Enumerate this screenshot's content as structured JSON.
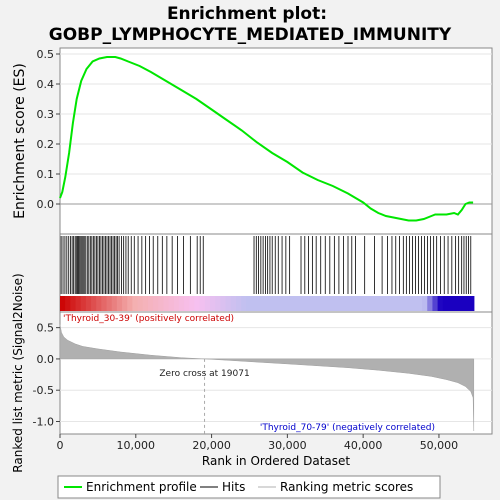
{
  "title_line1": "Enrichment plot:",
  "title_line2": "GOBP_LYMPHOCYTE_MEDIATED_IMMUNITY",
  "chart_data": [
    {
      "type": "line",
      "panel": "enrichment",
      "ylabel": "Enrichment score (ES)",
      "ylim": [
        -0.1,
        0.52
      ],
      "yticks": [
        0.0,
        0.1,
        0.2,
        0.3,
        0.4,
        0.5
      ],
      "ytick_labels": [
        "0.0",
        "0.1",
        "0.2",
        "0.3",
        "0.4",
        "0.5"
      ],
      "xlim": [
        0,
        57000
      ],
      "series": [
        {
          "name": "Enrichment profile",
          "color": "#00e600",
          "x": [
            0,
            300,
            700,
            1200,
            1700,
            2200,
            2800,
            3500,
            4300,
            5200,
            6200,
            7300,
            8000,
            9000,
            10500,
            12000,
            14000,
            16000,
            18000,
            20000,
            22000,
            24000,
            26000,
            28000,
            30000,
            32000,
            34000,
            36000,
            38000,
            39000,
            40000,
            41000,
            42000,
            43000,
            44000,
            45000,
            46000,
            47000,
            48000,
            49000,
            49500,
            50000,
            51000,
            52000,
            52500,
            53000,
            53500,
            54000,
            54500
          ],
          "y": [
            0.02,
            0.04,
            0.09,
            0.17,
            0.27,
            0.35,
            0.41,
            0.45,
            0.475,
            0.485,
            0.49,
            0.49,
            0.485,
            0.475,
            0.46,
            0.44,
            0.41,
            0.38,
            0.35,
            0.315,
            0.28,
            0.245,
            0.205,
            0.17,
            0.14,
            0.105,
            0.08,
            0.06,
            0.035,
            0.02,
            0.005,
            -0.015,
            -0.03,
            -0.04,
            -0.045,
            -0.05,
            -0.055,
            -0.055,
            -0.05,
            -0.04,
            -0.035,
            -0.035,
            -0.035,
            -0.03,
            -0.035,
            -0.02,
            0.0,
            0.005,
            0.005
          ]
        }
      ]
    },
    {
      "type": "hits",
      "panel": "hits",
      "series_name": "Hits",
      "color": "#000000",
      "hit_ranks": [
        150,
        400,
        650,
        900,
        1150,
        1400,
        1600,
        1800,
        2000,
        2150,
        2300,
        2450,
        2600,
        2750,
        2900,
        3050,
        3200,
        3400,
        3600,
        3800,
        4000,
        4200,
        4400,
        4600,
        4800,
        5000,
        5200,
        5400,
        5600,
        5800,
        6000,
        6200,
        6400,
        6600,
        6800,
        7000,
        7200,
        7400,
        7600,
        7800,
        8100,
        8400,
        8700,
        9000,
        9400,
        9800,
        10300,
        10800,
        11300,
        11800,
        12300,
        12900,
        13500,
        14100,
        14800,
        15500,
        16300,
        17200,
        18100,
        18500,
        18900,
        25600,
        25900,
        26200,
        26500,
        26800,
        27100,
        27400,
        27700,
        28000,
        28400,
        28800,
        29300,
        29800,
        30300,
        31800,
        32300,
        32800,
        33300,
        33800,
        34400,
        35000,
        35600,
        36200,
        36800,
        37400,
        38000,
        38500,
        39000,
        40200,
        41500,
        42500,
        43200,
        43800,
        44300,
        44800,
        45300,
        45700,
        46100,
        46500,
        46900,
        47300,
        47700,
        48100,
        48500,
        48900,
        49300,
        49700,
        50200,
        50700,
        51200,
        51700,
        52200,
        52600,
        53000,
        53300,
        53600,
        53900,
        54200
      ]
    },
    {
      "type": "area",
      "panel": "ranked_metric",
      "ylabel": "Ranked list metric (Signal2Noise)",
      "xlabel": "Rank in Ordered Dataset",
      "ylim": [
        -1.2,
        0.75
      ],
      "yticks": [
        0.5,
        0.0,
        -0.5,
        -1.0
      ],
      "ytick_labels": [
        "0.5",
        "0.0",
        "-0.5",
        "-1.0"
      ],
      "xlim": [
        0,
        57000
      ],
      "xticks": [
        0,
        10000,
        20000,
        30000,
        40000,
        50000
      ],
      "xtick_labels": [
        "0",
        "10,000",
        "20,000",
        "30,000",
        "40,000",
        "50,000"
      ],
      "color": "#b0b0b0",
      "x": [
        0,
        200,
        500,
        1000,
        2000,
        3000,
        5000,
        8000,
        12000,
        16000,
        19071,
        22000,
        26000,
        30000,
        34000,
        38000,
        42000,
        46000,
        49000,
        51000,
        52500,
        53500,
        54200,
        54500,
        54600
      ],
      "y": [
        0.55,
        0.42,
        0.35,
        0.3,
        0.24,
        0.2,
        0.16,
        0.11,
        0.06,
        0.02,
        0.0,
        -0.02,
        -0.05,
        -0.08,
        -0.11,
        -0.14,
        -0.18,
        -0.23,
        -0.28,
        -0.33,
        -0.38,
        -0.44,
        -0.52,
        -0.62,
        -1.15
      ],
      "zero_cross_label": "Zero cross at 19071",
      "zero_cross_rank": 19071,
      "positive_label": "'Thyroid_30-39' (positively correlated)",
      "negative_label": "'Thyroid_70-79' (negatively correlated)",
      "positive_label_color": "#cc0000",
      "negative_label_color": "#0000cc"
    }
  ],
  "legend": {
    "items": [
      {
        "label": "Enrichment profile",
        "color": "#00e600"
      },
      {
        "label": "Hits",
        "color": "#000000"
      },
      {
        "label": "Ranking metric scores",
        "color": "#b0b0b0"
      }
    ]
  },
  "colors": {
    "heat_positive_strong": "#cc0000",
    "heat_positive_light": "#f4b0b0",
    "heat_neutral": "#f7c0f0",
    "heat_negative_light": "#c0c0f0",
    "heat_negative_strong": "#1a00c0"
  }
}
